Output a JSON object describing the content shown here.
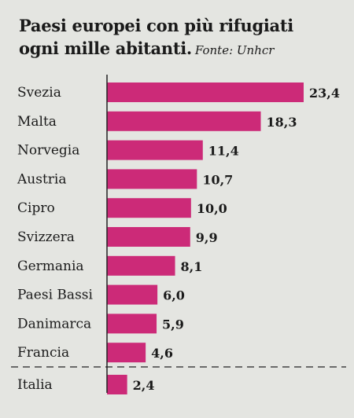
{
  "header": {
    "title_line1": "Paesi europei con più rifugiati",
    "title_line2": "ogni mille abitanti.",
    "source": "Fonte: Unhcr"
  },
  "colors": {
    "bar": "#cc2a78",
    "axis": "#222222",
    "background": "#e4e5e1"
  },
  "chart_data": {
    "type": "bar",
    "orientation": "horizontal",
    "title": "Paesi europei con più rifugiati ogni mille abitanti.",
    "subtitle": "Fonte: Unhcr",
    "categories": [
      "Svezia",
      "Malta",
      "Norvegia",
      "Austria",
      "Cipro",
      "Svizzera",
      "Germania",
      "Paesi Bassi",
      "Danimarca",
      "Francia",
      "Italia"
    ],
    "values": [
      23.4,
      18.3,
      11.4,
      10.7,
      10.0,
      9.9,
      8.1,
      6.0,
      5.9,
      4.6,
      2.4
    ],
    "value_labels": [
      "23,4",
      "18,3",
      "11,4",
      "10,7",
      "10,0",
      "9,9",
      "8,1",
      "6,0",
      "5,9",
      "4,6",
      "2,4"
    ],
    "xlim": [
      0,
      23.4
    ],
    "separator_before": "Italia",
    "grid": false,
    "legend": "none"
  }
}
